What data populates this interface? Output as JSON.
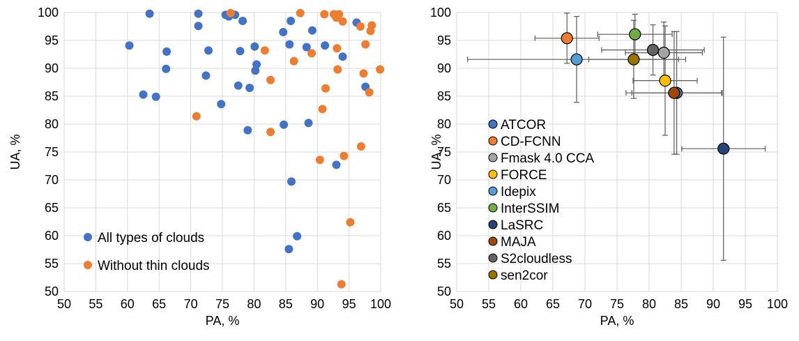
{
  "chart_data": [
    {
      "type": "scatter",
      "xlabel": "PA, %",
      "ylabel": "UA, %",
      "xlim": [
        50,
        100
      ],
      "ylim": [
        50,
        100
      ],
      "xticks": [
        "50",
        "55",
        "60",
        "65",
        "70",
        "75",
        "80",
        "85",
        "90",
        "95",
        "100"
      ],
      "yticks": [
        "50",
        "55",
        "60",
        "65",
        "70",
        "75",
        "80",
        "85",
        "90",
        "95",
        "100"
      ],
      "grid": true,
      "legend_position": "bottom-left",
      "series": [
        {
          "name": "All types of clouds",
          "color": "#4472C4",
          "points": [
            [
              63.5,
              99.8
            ],
            [
              71.2,
              99.8
            ],
            [
              75.5,
              99.6
            ],
            [
              76.0,
              99.3
            ],
            [
              77.0,
              99.6
            ],
            [
              78.2,
              98.5
            ],
            [
              85.8,
              98.5
            ],
            [
              96.2,
              98.2
            ],
            [
              71.2,
              97.6
            ],
            [
              89.2,
              96.8
            ],
            [
              84.6,
              96.5
            ],
            [
              60.3,
              94.1
            ],
            [
              80.1,
              93.9
            ],
            [
              85.6,
              94.3
            ],
            [
              88.3,
              93.8
            ],
            [
              91.2,
              94.1
            ],
            [
              66.2,
              93.0
            ],
            [
              72.8,
              93.2
            ],
            [
              77.8,
              93.1
            ],
            [
              94.0,
              92.1
            ],
            [
              80.4,
              90.7
            ],
            [
              80.2,
              89.6
            ],
            [
              66.1,
              89.9
            ],
            [
              72.4,
              88.7
            ],
            [
              62.5,
              85.3
            ],
            [
              64.5,
              84.9
            ],
            [
              77.5,
              86.9
            ],
            [
              79.3,
              86.5
            ],
            [
              97.6,
              86.7
            ],
            [
              74.8,
              83.6
            ],
            [
              79.0,
              78.9
            ],
            [
              84.7,
              79.9
            ],
            [
              88.6,
              80.2
            ],
            [
              93.0,
              72.7
            ],
            [
              85.9,
              69.7
            ],
            [
              86.8,
              59.9
            ],
            [
              85.5,
              57.6
            ]
          ]
        },
        {
          "name": "Without thin clouds",
          "color": "#ED7D31",
          "points": [
            [
              76.3,
              99.9
            ],
            [
              87.3,
              99.9
            ],
            [
              91.1,
              99.7
            ],
            [
              92.6,
              99.7
            ],
            [
              93.4,
              99.7
            ],
            [
              93.0,
              99.1
            ],
            [
              94.0,
              98.4
            ],
            [
              96.8,
              97.5
            ],
            [
              98.6,
              97.7
            ],
            [
              98.4,
              96.7
            ],
            [
              93.1,
              93.6
            ],
            [
              97.6,
              94.3
            ],
            [
              81.7,
              93.2
            ],
            [
              86.3,
              91.3
            ],
            [
              89.1,
              92.7
            ],
            [
              93.2,
              89.8
            ],
            [
              97.3,
              89.1
            ],
            [
              99.9,
              89.8
            ],
            [
              82.6,
              87.9
            ],
            [
              91.3,
              86.4
            ],
            [
              98.2,
              85.7
            ],
            [
              70.9,
              81.4
            ],
            [
              90.8,
              82.7
            ],
            [
              82.6,
              78.6
            ],
            [
              90.4,
              73.6
            ],
            [
              94.2,
              74.3
            ],
            [
              96.9,
              76.0
            ],
            [
              95.2,
              62.4
            ],
            [
              93.8,
              51.3
            ]
          ]
        }
      ]
    },
    {
      "type": "scatter",
      "xlabel": "PA, %",
      "ylabel": "UA, %",
      "xlim": [
        50,
        100
      ],
      "ylim": [
        50,
        100
      ],
      "xticks": [
        "50",
        "55",
        "60",
        "65",
        "70",
        "75",
        "80",
        "85",
        "90",
        "95",
        "100"
      ],
      "yticks": [
        "50",
        "55",
        "60",
        "65",
        "70",
        "75",
        "80",
        "85",
        "90",
        "95",
        "100"
      ],
      "grid": true,
      "legend_position": "left",
      "error_bars": true,
      "series": [
        {
          "name": "ATCOR",
          "color": "#4472C4",
          "x": 84.3,
          "y": 85.6,
          "xerr": [
            7.0,
            7.0
          ],
          "yerr": [
            11.0,
            11.0
          ]
        },
        {
          "name": "CD-FCNN",
          "color": "#ED7D31",
          "x": 67.2,
          "y": 95.4,
          "xerr": [
            5.0,
            5.0
          ],
          "yerr": [
            4.5,
            4.5
          ]
        },
        {
          "name": "Fmask 4.0 CCA",
          "color": "#A5A5A5",
          "x": 82.3,
          "y": 92.8,
          "xerr": [
            6.0,
            6.0
          ],
          "yerr": [
            5.5,
            5.5
          ]
        },
        {
          "name": "FORCE",
          "color": "#FFC000",
          "x": 82.5,
          "y": 87.8,
          "xerr": [
            5.0,
            5.0
          ],
          "yerr": [
            9.8,
            9.8
          ]
        },
        {
          "name": "Idepix",
          "color": "#5B9BD5",
          "x": 68.7,
          "y": 91.6,
          "xerr": [
            17.0,
            17.0
          ],
          "yerr": [
            7.7,
            7.7
          ]
        },
        {
          "name": "InterSSIM",
          "color": "#70AD47",
          "x": 77.8,
          "y": 96.1,
          "xerr": [
            5.8,
            5.8
          ],
          "yerr": [
            3.6,
            3.6
          ]
        },
        {
          "name": "LaSRC",
          "color": "#264478",
          "x": 91.6,
          "y": 75.6,
          "xerr": [
            6.5,
            6.5
          ],
          "yerr": [
            20.0,
            20.0
          ]
        },
        {
          "name": "MAJA",
          "color": "#9E480E",
          "x": 83.9,
          "y": 85.6,
          "xerr": [
            7.5,
            7.5
          ],
          "yerr": [
            11.0,
            11.0
          ]
        },
        {
          "name": "S2cloudless",
          "color": "#636363",
          "x": 80.6,
          "y": 93.3,
          "xerr": [
            8.0,
            8.0
          ],
          "yerr": [
            4.5,
            4.5
          ]
        },
        {
          "name": "sen2cor",
          "color": "#997300",
          "x": 77.6,
          "y": 91.6,
          "xerr": [
            7.0,
            7.0
          ],
          "yerr": [
            7.0,
            7.0
          ]
        }
      ]
    }
  ]
}
